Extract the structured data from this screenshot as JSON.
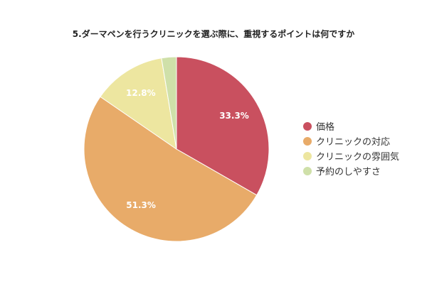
{
  "chart_data": {
    "type": "pie",
    "title": "5.ダーマペンを行うクリニックを選ぶ際に、重視するポイントは何ですか",
    "categories": [
      "価格",
      "クリニックの対応",
      "クリニックの雰囲気",
      "予約のしやすさ"
    ],
    "values": [
      33.3,
      51.3,
      12.8,
      2.6
    ],
    "data_labels": [
      "33.3%",
      "51.3%",
      "12.8%",
      ""
    ],
    "colors": [
      "#c9505f",
      "#e8ab69",
      "#ede6a0",
      "#cfe0a9"
    ],
    "legend_position": "right",
    "start_angle": "12 o'clock",
    "direction": "clockwise"
  }
}
